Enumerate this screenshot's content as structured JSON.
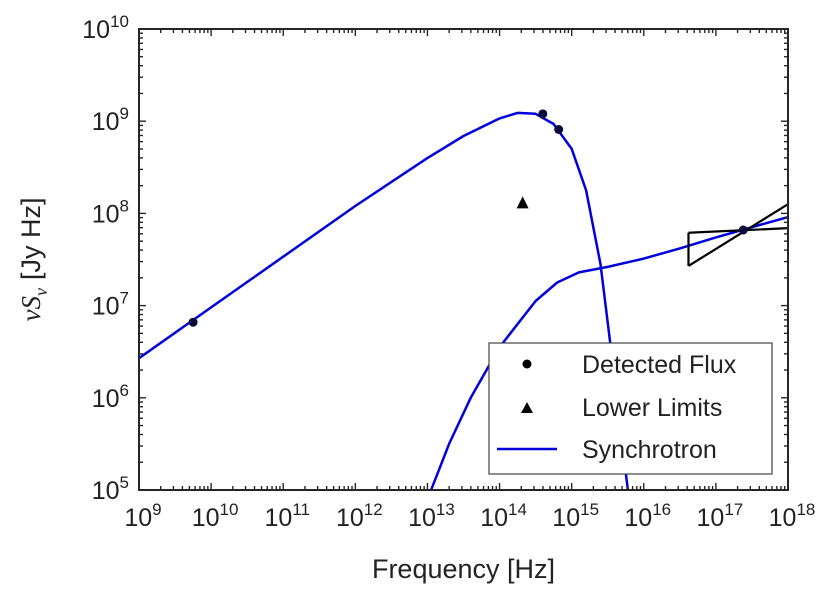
{
  "chart_data": {
    "type": "scatter",
    "title": "",
    "xlabel": "Frequency [Hz]",
    "ylabel_symbol": "νS",
    "ylabel_subscript": "ν",
    "ylabel_units": "[Jy Hz]",
    "x_scale": "log",
    "y_scale": "log",
    "xlim_log10": [
      9,
      18
    ],
    "ylim_log10": [
      5,
      10
    ],
    "x_tick_exponents": [
      "9",
      "10",
      "11",
      "12",
      "13",
      "14",
      "15",
      "16",
      "17",
      "18"
    ],
    "y_tick_exponents": [
      "5",
      "6",
      "7",
      "8",
      "9",
      "10"
    ],
    "tick_base": "10",
    "grid": false,
    "legend_position": "bottom-right",
    "series": [
      {
        "name": "Detected Flux",
        "kind": "points",
        "marker": "circle",
        "color": "#0a0a3c",
        "points": [
          {
            "log_x": 9.75,
            "log_y": 6.82
          },
          {
            "log_x": 14.6,
            "log_y": 9.08
          },
          {
            "log_x": 14.82,
            "log_y": 8.91
          },
          {
            "log_x": 17.38,
            "log_y": 7.82
          }
        ]
      },
      {
        "name": "Lower Limits",
        "kind": "points",
        "marker": "triangle",
        "color": "#000000",
        "points": [
          {
            "log_x": 14.32,
            "log_y": 8.12
          }
        ]
      },
      {
        "name": "Synchrotron",
        "kind": "line",
        "color": "#0000dd",
        "components": [
          {
            "label": "synchrotron component 1",
            "points": [
              {
                "log_x": 9.0,
                "log_y": 6.43
              },
              {
                "log_x": 10.0,
                "log_y": 6.98
              },
              {
                "log_x": 11.0,
                "log_y": 7.53
              },
              {
                "log_x": 12.0,
                "log_y": 8.08
              },
              {
                "log_x": 13.0,
                "log_y": 8.6
              },
              {
                "log_x": 13.5,
                "log_y": 8.84
              },
              {
                "log_x": 14.0,
                "log_y": 9.03
              },
              {
                "log_x": 14.25,
                "log_y": 9.09
              },
              {
                "log_x": 14.5,
                "log_y": 9.08
              },
              {
                "log_x": 14.75,
                "log_y": 8.97
              },
              {
                "log_x": 15.0,
                "log_y": 8.7
              },
              {
                "log_x": 15.2,
                "log_y": 8.25
              },
              {
                "log_x": 15.4,
                "log_y": 7.45
              },
              {
                "log_x": 15.55,
                "log_y": 6.5
              },
              {
                "log_x": 15.7,
                "log_y": 5.5
              },
              {
                "log_x": 15.78,
                "log_y": 5.0
              }
            ]
          },
          {
            "label": "synchrotron component 2",
            "points": [
              {
                "log_x": 13.05,
                "log_y": 5.0
              },
              {
                "log_x": 13.3,
                "log_y": 5.5
              },
              {
                "log_x": 13.6,
                "log_y": 6.0
              },
              {
                "log_x": 14.0,
                "log_y": 6.55
              },
              {
                "log_x": 14.5,
                "log_y": 7.05
              },
              {
                "log_x": 14.8,
                "log_y": 7.25
              },
              {
                "log_x": 15.1,
                "log_y": 7.36
              },
              {
                "log_x": 15.5,
                "log_y": 7.42
              },
              {
                "log_x": 16.0,
                "log_y": 7.51
              },
              {
                "log_x": 16.5,
                "log_y": 7.62
              },
              {
                "log_x": 17.0,
                "log_y": 7.74
              },
              {
                "log_x": 17.5,
                "log_y": 7.85
              },
              {
                "log_x": 18.0,
                "log_y": 7.96
              }
            ]
          }
        ]
      }
    ],
    "xray_bowtie": {
      "label": "x-ray bowtie",
      "color": "#000000",
      "pivot": {
        "log_x": 17.38,
        "log_y": 7.82
      },
      "x_range_log10": [
        16.62,
        18.0
      ],
      "hard_line": {
        "y_start_log10": 7.43,
        "y_end_log10": 8.1
      },
      "soft_line": {
        "y_start_log10": 7.79,
        "y_end_log10": 7.84
      }
    }
  }
}
